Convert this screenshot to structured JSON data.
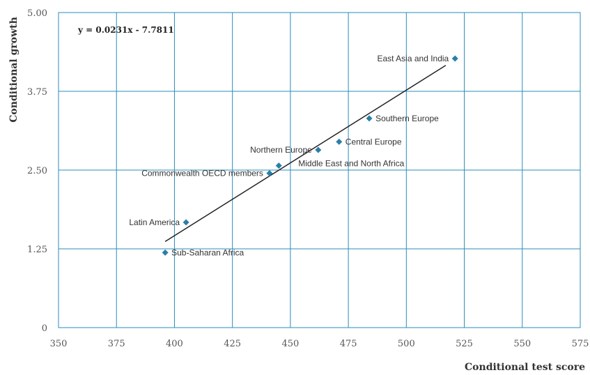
{
  "chart_data": {
    "type": "scatter",
    "xlabel": "Conditional test score",
    "ylabel": "Conditional growth",
    "xlim": [
      350,
      575
    ],
    "ylim": [
      0,
      5
    ],
    "xticks": [
      350,
      375,
      400,
      425,
      450,
      475,
      500,
      525,
      550,
      575
    ],
    "xtick_labels": [
      "350",
      "375",
      "400",
      "425",
      "450",
      "475",
      "500",
      "525",
      "550",
      "575"
    ],
    "yticks": [
      0,
      1.25,
      2.5,
      3.75,
      5.0
    ],
    "ytick_labels": [
      "0",
      "1.25",
      "2.50",
      "3.75",
      "5.00"
    ],
    "grid": true,
    "colors": {
      "points": "#2a7fa8",
      "grid": "#2a8cb8",
      "trend": "#222222"
    },
    "points": [
      {
        "label": "East Asia and India",
        "x": 521,
        "y": 4.27,
        "label_side": "left"
      },
      {
        "label": "Southern Europe",
        "x": 484,
        "y": 3.32,
        "label_side": "right"
      },
      {
        "label": "Central Europe",
        "x": 471,
        "y": 2.95,
        "label_side": "right"
      },
      {
        "label": "Northern Europe",
        "x": 462,
        "y": 2.82,
        "label_side": "left"
      },
      {
        "label": "Middle East and North Africa",
        "x": 445,
        "y": 2.57,
        "label_side": "right-below"
      },
      {
        "label": "Commonwealth OECD members",
        "x": 441,
        "y": 2.45,
        "label_side": "left"
      },
      {
        "label": "Latin America",
        "x": 405,
        "y": 1.67,
        "label_side": "left"
      },
      {
        "label": "Sub-Saharan Africa",
        "x": 396,
        "y": 1.19,
        "label_side": "right"
      }
    ],
    "trendline": {
      "equation": "y = 0.0231x - 7.7811",
      "slope": 0.0231,
      "intercept": -7.7811,
      "x_range": [
        396,
        517
      ]
    }
  }
}
